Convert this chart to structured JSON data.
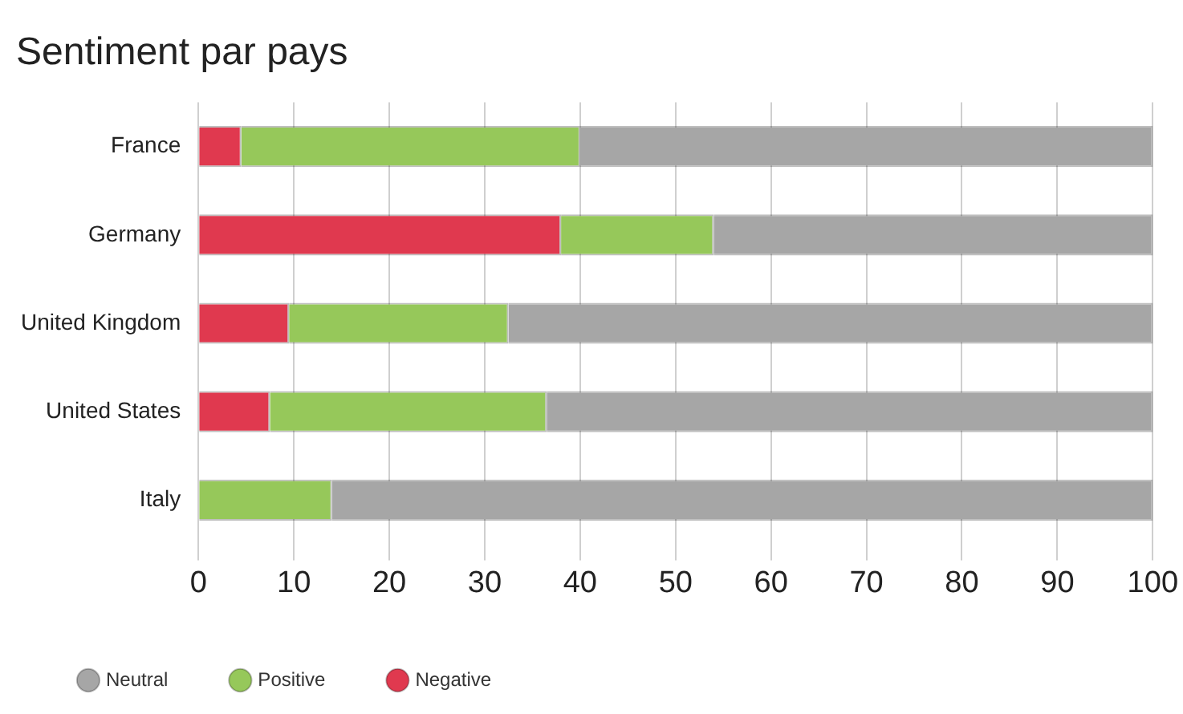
{
  "chart_data": {
    "type": "bar",
    "title": "Sentiment par pays",
    "orientation": "horizontal",
    "stacked": true,
    "categories": [
      "France",
      "Germany",
      "United Kingdom",
      "United States",
      "Italy"
    ],
    "series": [
      {
        "name": "Negative",
        "color": "#e0394f",
        "values": [
          4.5,
          38,
          9.5,
          7.5,
          0
        ]
      },
      {
        "name": "Positive",
        "color": "#96c85a",
        "values": [
          35.5,
          16,
          23,
          29,
          14
        ]
      },
      {
        "name": "Neutral",
        "color": "#a6a6a6",
        "values": [
          60,
          46,
          67.5,
          63.5,
          86
        ]
      }
    ],
    "xlim": [
      0,
      100
    ],
    "xticks": [
      0,
      10,
      20,
      30,
      40,
      50,
      60,
      70,
      80,
      90,
      100
    ],
    "grid": "x",
    "legend": "bottom left"
  }
}
